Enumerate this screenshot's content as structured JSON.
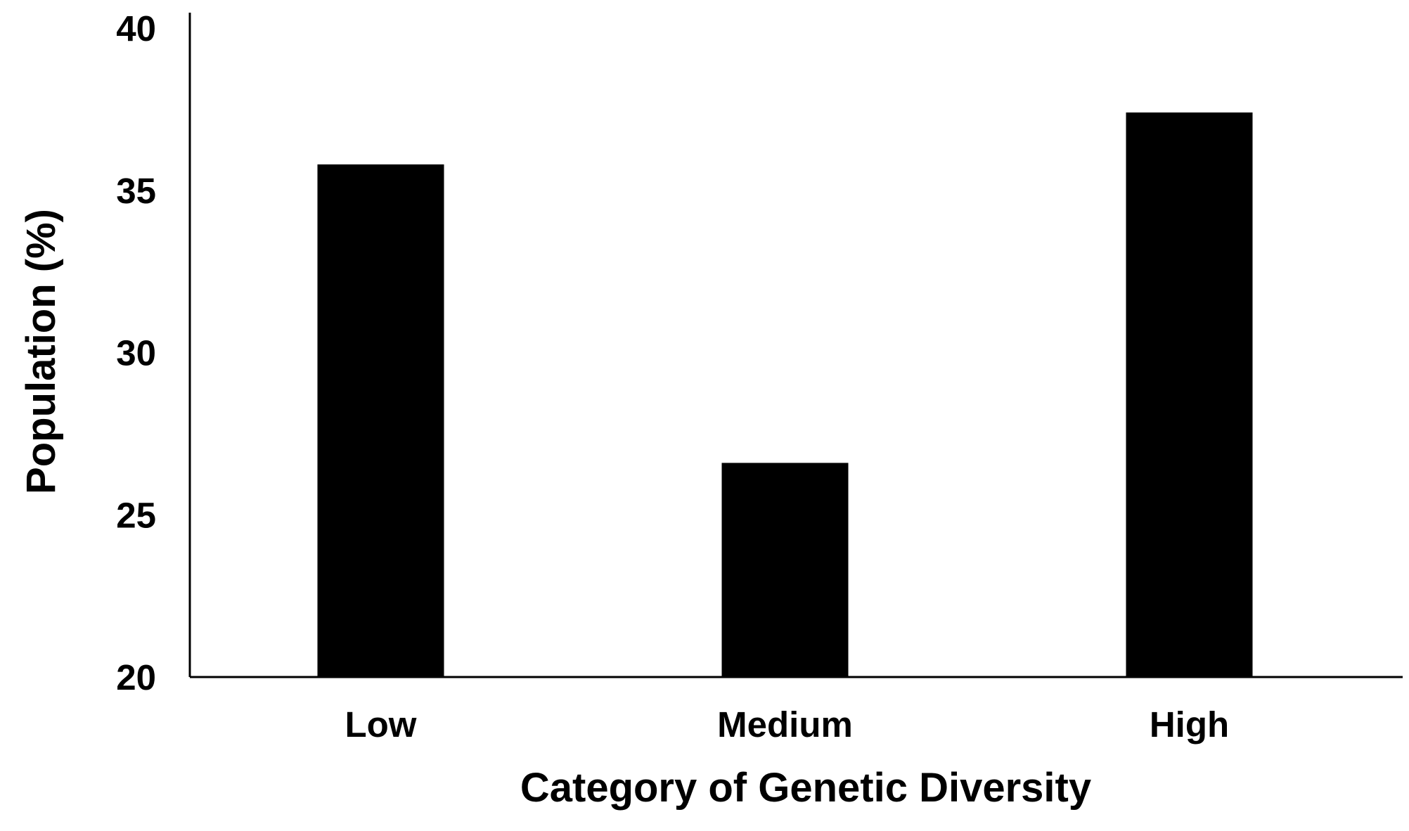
{
  "chart_data": {
    "type": "bar",
    "title": "",
    "xlabel": "Category of Genetic Diversity",
    "ylabel": "Population (%)",
    "categories": [
      "Low",
      "Medium",
      "High"
    ],
    "values": [
      35.8,
      26.6,
      37.4
    ],
    "ylim": [
      20,
      40
    ],
    "yticks": [
      "20",
      "25",
      "30",
      "35",
      "40"
    ],
    "grid": false,
    "legend": "none",
    "bar_color": "#000000"
  }
}
